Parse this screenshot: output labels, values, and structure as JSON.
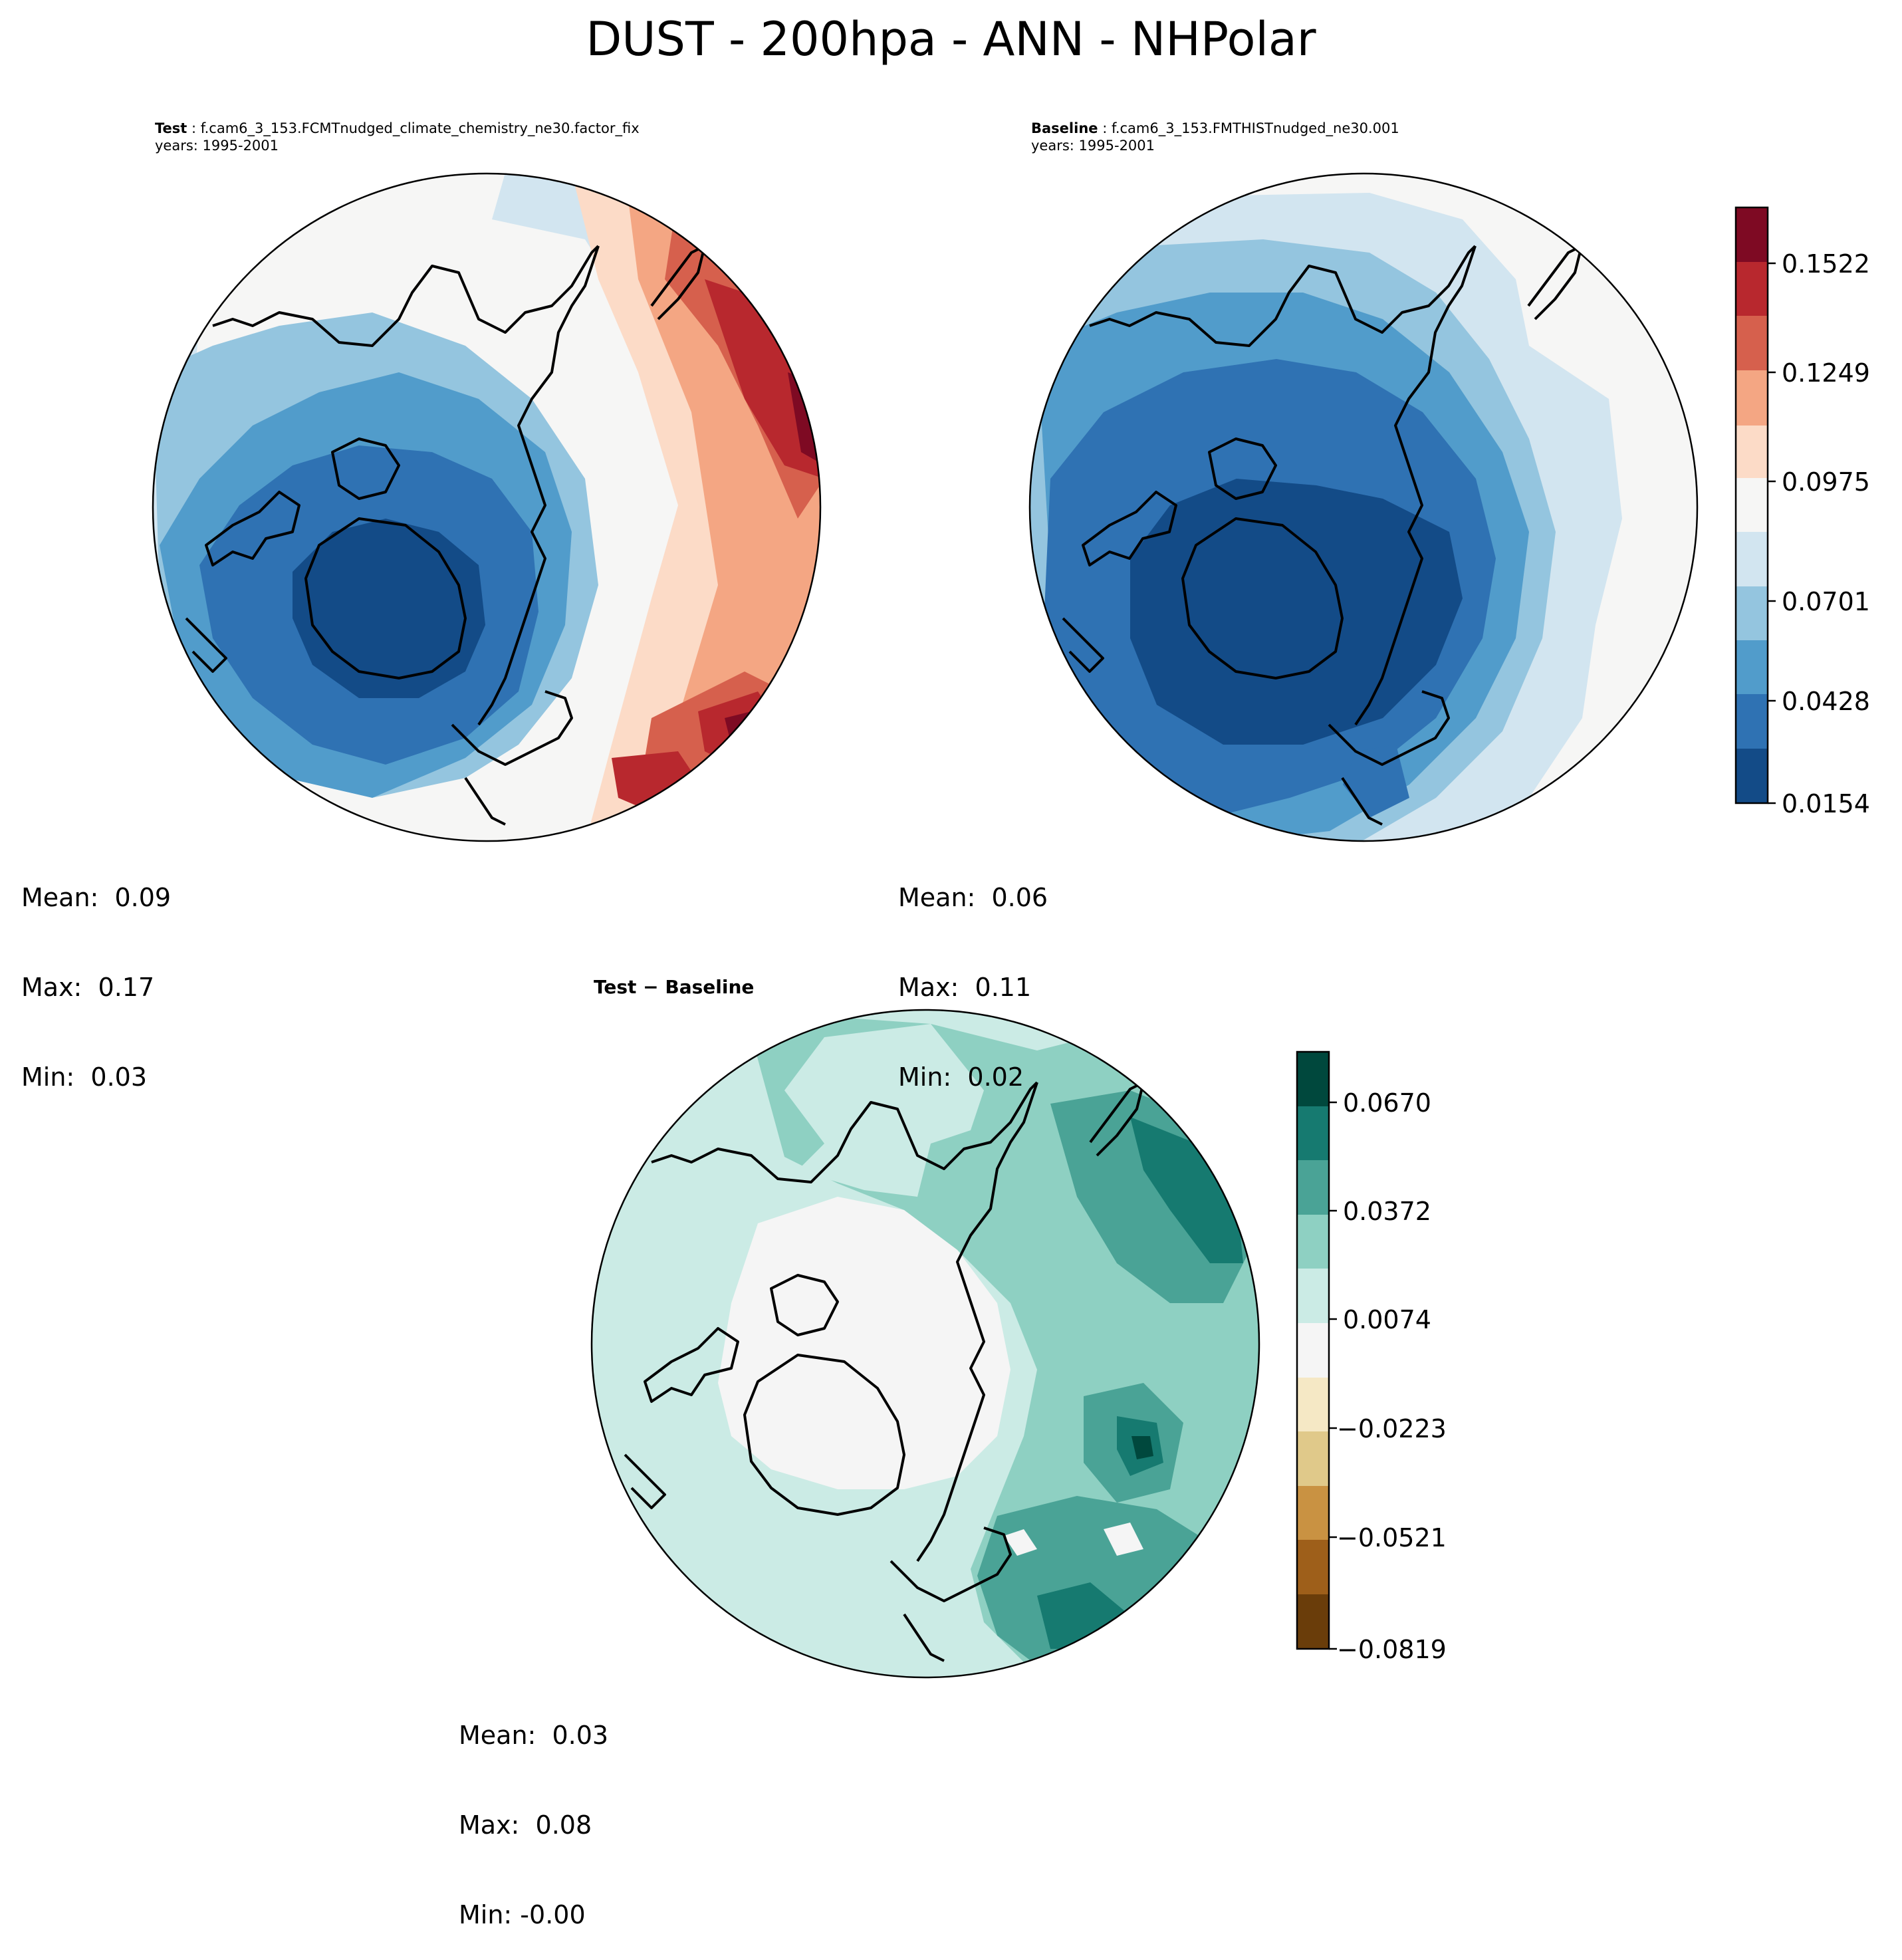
{
  "figure": {
    "title": "DUST - 200hpa - ANN - NHPolar"
  },
  "panels": {
    "test": {
      "label": "Test",
      "case": "f.cam6_3_153.FCMTnudged_climate_chemistry_ne30.factor_fix",
      "years": "years: 1995-2001",
      "mean": "Mean:  0.09",
      "max": "Max:  0.17",
      "min": "Min:  0.03"
    },
    "baseline": {
      "label": "Baseline",
      "case": "f.cam6_3_153.FMTHISTnudged_ne30.001",
      "years": "years: 1995-2001",
      "mean": "Mean:  0.06",
      "max": "Max:  0.11",
      "min": "Min:  0.02"
    },
    "diff": {
      "title": "Test − Baseline",
      "mean": "Mean:  0.03",
      "max": "Max:  0.08",
      "min": "Min: -0.00"
    }
  },
  "chart_data": [
    {
      "type": "heatmap",
      "projection": "north-polar-stereographic",
      "panel": "test",
      "field": "DUST",
      "level": "200hpa",
      "season": "ANN",
      "summary": {
        "mean": 0.09,
        "max": 0.17,
        "min": 0.03
      },
      "colormap": "RdBu_r",
      "colorbar": {
        "ticks": [
          "0.0154",
          "0.0428",
          "0.0701",
          "0.0975",
          "0.1249",
          "0.1522"
        ],
        "levels": [
          0.0154,
          0.0291,
          0.0428,
          0.0565,
          0.0701,
          0.0838,
          0.0975,
          0.1112,
          0.1249,
          0.1385,
          0.1522,
          0.1659
        ],
        "colors": [
          "#134b87",
          "#2f72b3",
          "#519ccb",
          "#94c5df",
          "#d2e5f0",
          "#f6f6f5",
          "#fcdbc7",
          "#f4a683",
          "#d6604d",
          "#b8282e",
          "#7e0a23"
        ]
      }
    },
    {
      "type": "heatmap",
      "projection": "north-polar-stereographic",
      "panel": "baseline",
      "field": "DUST",
      "level": "200hpa",
      "season": "ANN",
      "summary": {
        "mean": 0.06,
        "max": 0.11,
        "min": 0.02
      },
      "colormap": "RdBu_r",
      "colorbar": "shared with test panel"
    },
    {
      "type": "heatmap",
      "projection": "north-polar-stereographic",
      "panel": "diff",
      "field": "DUST difference",
      "summary": {
        "mean": 0.03,
        "max": 0.08,
        "min": -0.0
      },
      "colormap": "BrBG",
      "colorbar": {
        "ticks": [
          "0.0670",
          "0.0372",
          "0.0074",
          "−0.0223",
          "−0.0521",
          "−0.0819"
        ],
        "levels": [
          -0.0819,
          -0.067,
          -0.0521,
          -0.0372,
          -0.0223,
          -0.0074,
          0.0074,
          0.0223,
          0.0372,
          0.0521,
          0.067,
          0.0819
        ],
        "colors": [
          "#6a3d0a",
          "#9e5f1a",
          "#c99242",
          "#e0c98a",
          "#f5e8c5",
          "#f5f5f5",
          "#cbebe5",
          "#8ed0c2",
          "#4aa396",
          "#167a70",
          "#00483d"
        ]
      }
    }
  ]
}
